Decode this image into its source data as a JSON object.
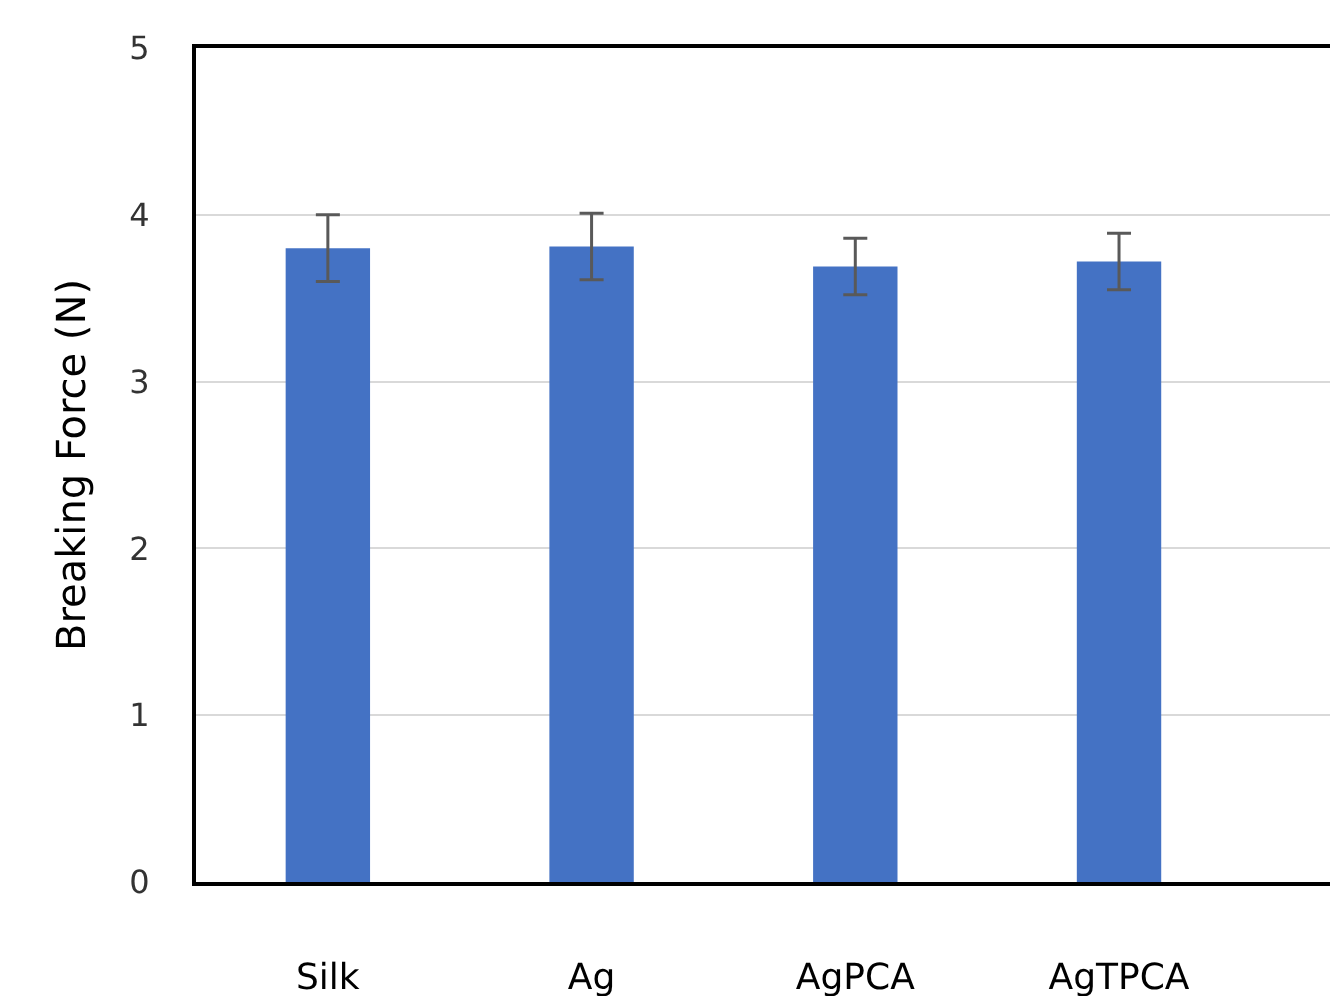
{
  "chart_data": {
    "type": "bar",
    "ylabel": "Breaking Force (N)",
    "categories": [
      "Silk",
      "Ag",
      "AgPCA",
      "AgTPCA"
    ],
    "values": [
      3.8,
      3.81,
      3.69,
      3.72
    ],
    "color": "#4472c4",
    "errors": [
      0.2,
      0.2,
      0.17,
      0.17
    ],
    "ylim": [
      0,
      5
    ],
    "yticks": [
      0,
      1,
      2,
      3,
      4,
      5
    ],
    "grid": "y",
    "legend": false
  }
}
